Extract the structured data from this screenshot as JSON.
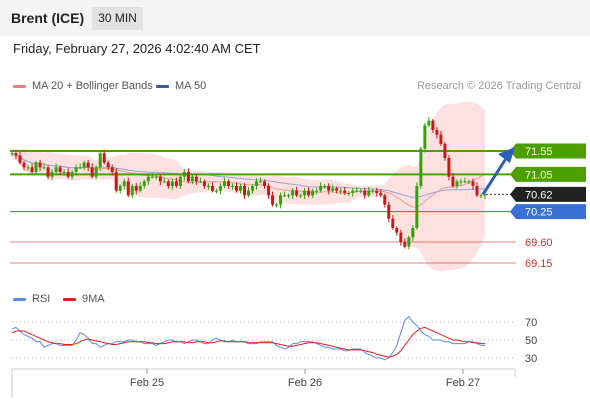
{
  "header": {
    "instrument": "Brent (ICE)",
    "timeframe": "30 MIN"
  },
  "timestamp": "Friday, February 27, 2026 4:02:40 AM CET",
  "legend": {
    "bollinger": {
      "label": "MA 20 + Bollinger Bands",
      "color": "#f08080"
    },
    "ma50": {
      "label": "MA 50",
      "color": "#3a5fa0"
    },
    "rsi": {
      "label": "RSI",
      "color": "#5b8ae6"
    },
    "rsi_ma": {
      "label": "9MA",
      "color": "#e02020"
    }
  },
  "credit": "Research © 2026 Trading Central",
  "chart_data": [
    {
      "type": "candlestick",
      "title": "Brent (ICE)",
      "x_tick_labels": [
        "Feb 25",
        "Feb 26",
        "Feb 27"
      ],
      "ylim": [
        68.8,
        72.4
      ],
      "levels": [
        {
          "label": "71.55",
          "value": 71.55,
          "kind": "resistance",
          "color": "#4ba000"
        },
        {
          "label": "71.05",
          "value": 71.05,
          "kind": "resistance",
          "color": "#4ba000"
        },
        {
          "label": "70.62",
          "value": 70.62,
          "kind": "last",
          "color": "#222222"
        },
        {
          "label": "70.25",
          "value": 70.25,
          "kind": "pivot",
          "color": "#3a6fd8"
        },
        {
          "label": "69.60",
          "value": 69.6,
          "kind": "support",
          "color": "#d23030"
        },
        {
          "label": "69.15",
          "value": 69.15,
          "kind": "support",
          "color": "#d23030"
        }
      ],
      "close": [
        71.5,
        71.45,
        71.3,
        71.2,
        71.2,
        71.1,
        71.3,
        71.2,
        71.2,
        71.0,
        71.1,
        71.2,
        71.1,
        71.1,
        71.0,
        71.1,
        71.2,
        71.2,
        71.3,
        71.2,
        71.0,
        71.2,
        71.5,
        71.3,
        71.2,
        71.1,
        70.7,
        70.8,
        70.9,
        70.6,
        70.8,
        70.7,
        70.8,
        70.9,
        71.0,
        71.0,
        71.0,
        70.9,
        70.9,
        70.8,
        70.9,
        70.8,
        71.0,
        71.1,
        70.9,
        71.0,
        70.9,
        70.9,
        70.8,
        70.8,
        70.7,
        70.7,
        70.8,
        70.9,
        70.8,
        70.8,
        70.7,
        70.8,
        70.6,
        70.7,
        70.8,
        70.9,
        70.9,
        70.8,
        70.6,
        70.4,
        70.4,
        70.6,
        70.6,
        70.6,
        70.7,
        70.6,
        70.6,
        70.7,
        70.6,
        70.7,
        70.7,
        70.8,
        70.8,
        70.7,
        70.75,
        70.7,
        70.7,
        70.65,
        70.65,
        70.7,
        70.7,
        70.7,
        70.6,
        70.7,
        70.7,
        70.65,
        70.6,
        70.4,
        70.1,
        69.9,
        69.8,
        69.6,
        69.5,
        69.7,
        69.9,
        70.8,
        71.6,
        72.1,
        72.2,
        72.0,
        71.9,
        71.7,
        71.4,
        71.0,
        70.8,
        70.9,
        70.9,
        70.9,
        70.9,
        70.8,
        70.6,
        70.6,
        70.62
      ]
    },
    {
      "type": "line",
      "title": "RSI",
      "series": [
        {
          "name": "RSI",
          "values": [
            62,
            64,
            60,
            56,
            54,
            52,
            48,
            48,
            42,
            44,
            46,
            46,
            44,
            44,
            44,
            44,
            50,
            58,
            56,
            52,
            46,
            46,
            42,
            44,
            46,
            46,
            48,
            48,
            48,
            50,
            50,
            48,
            48,
            46,
            46,
            46,
            44,
            46,
            48,
            50,
            50,
            48,
            48,
            46,
            48,
            50,
            50,
            48,
            46,
            46,
            50,
            52,
            50,
            48,
            48,
            50,
            48,
            48,
            48,
            46,
            46,
            46,
            48,
            48,
            48,
            48,
            44,
            42,
            40,
            42,
            46,
            46,
            48,
            48,
            48,
            48,
            46,
            44,
            42,
            42,
            40,
            40,
            40,
            38,
            38,
            40,
            40,
            40,
            36,
            34,
            32,
            30,
            30,
            28,
            30,
            36,
            44,
            58,
            72,
            76,
            70,
            66,
            60,
            56,
            54,
            50,
            50,
            50,
            48,
            48,
            46,
            46,
            46,
            46,
            48,
            48,
            46,
            44,
            44
          ]
        },
        {
          "name": "9MA",
          "values": [
            58,
            60,
            60,
            60,
            58,
            56,
            54,
            52,
            50,
            48,
            47,
            46,
            46,
            45,
            45,
            45,
            46,
            48,
            50,
            51,
            50,
            49,
            48,
            47,
            46,
            45,
            45,
            46,
            47,
            48,
            48,
            48,
            48,
            48,
            47,
            47,
            46,
            46,
            46,
            47,
            48,
            48,
            48,
            48,
            47,
            47,
            48,
            48,
            48,
            47,
            47,
            48,
            49,
            49,
            48,
            48,
            48,
            48,
            48,
            47,
            47,
            47,
            47,
            47,
            47,
            47,
            46,
            45,
            44,
            43,
            43,
            44,
            45,
            46,
            47,
            47,
            47,
            46,
            45,
            44,
            43,
            42,
            41,
            40,
            39,
            39,
            39,
            39,
            38,
            37,
            36,
            34,
            33,
            32,
            31,
            32,
            34,
            38,
            44,
            50,
            56,
            60,
            63,
            64,
            62,
            60,
            58,
            56,
            54,
            52,
            50,
            50,
            49,
            48,
            48,
            47,
            47,
            46,
            46
          ]
        }
      ],
      "ylim": [
        20,
        80
      ],
      "y_tick_labels": [
        "70",
        "50",
        "30"
      ]
    }
  ]
}
